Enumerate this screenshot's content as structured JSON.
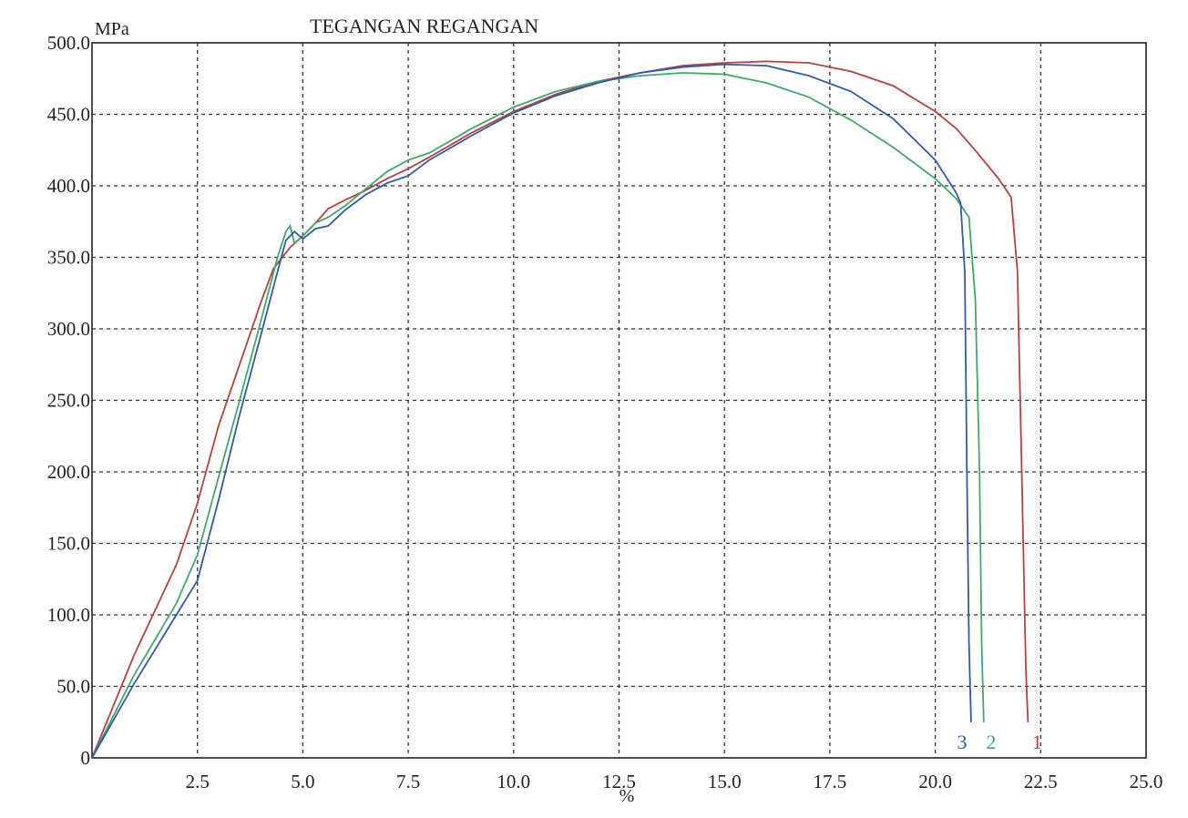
{
  "chart_data": {
    "type": "line",
    "title": "TEGANGAN REGANGAN",
    "ylabel": "MPa",
    "xlabel": "%",
    "xlim": [
      0,
      25
    ],
    "ylim": [
      0,
      500
    ],
    "grid": true,
    "x_ticks": [
      "2.5",
      "5.0",
      "7.5",
      "10.0",
      "12.5",
      "15.0",
      "17.5",
      "20.0",
      "22.5",
      "25.0"
    ],
    "y_ticks": [
      "0",
      "50.0",
      "100.0",
      "150.0",
      "200.0",
      "250.0",
      "300.0",
      "350.0",
      "400.0",
      "450.0",
      "500.0"
    ],
    "series": [
      {
        "name": "1",
        "color": "#b5413f",
        "points": [
          [
            0,
            0
          ],
          [
            1.0,
            72
          ],
          [
            2.0,
            135
          ],
          [
            2.5,
            178
          ],
          [
            3.0,
            232
          ],
          [
            3.5,
            275
          ],
          [
            4.0,
            318
          ],
          [
            4.3,
            342
          ],
          [
            4.7,
            357
          ],
          [
            5.0,
            365
          ],
          [
            5.3,
            374
          ],
          [
            5.6,
            384
          ],
          [
            6.0,
            390
          ],
          [
            6.5,
            397
          ],
          [
            7.0,
            405
          ],
          [
            7.5,
            412
          ],
          [
            8.0,
            420
          ],
          [
            9.0,
            437
          ],
          [
            10.0,
            452
          ],
          [
            11.0,
            464
          ],
          [
            12.0,
            473
          ],
          [
            13.0,
            479
          ],
          [
            14.0,
            484
          ],
          [
            15.0,
            486
          ],
          [
            16.0,
            487
          ],
          [
            17.0,
            486
          ],
          [
            18.0,
            480
          ],
          [
            19.0,
            470
          ],
          [
            20.0,
            452
          ],
          [
            20.5,
            440
          ],
          [
            21.0,
            423
          ],
          [
            21.5,
            405
          ],
          [
            21.8,
            392
          ],
          [
            21.95,
            340
          ],
          [
            22.05,
            200
          ],
          [
            22.15,
            60
          ],
          [
            22.2,
            25
          ]
        ]
      },
      {
        "name": "2",
        "color": "#3fa86a",
        "points": [
          [
            0,
            0
          ],
          [
            1.0,
            58
          ],
          [
            2.0,
            108
          ],
          [
            2.5,
            142
          ],
          [
            3.0,
            196
          ],
          [
            3.5,
            250
          ],
          [
            4.0,
            305
          ],
          [
            4.4,
            350
          ],
          [
            4.6,
            368
          ],
          [
            4.7,
            372
          ],
          [
            4.8,
            360
          ],
          [
            5.0,
            365
          ],
          [
            5.3,
            374
          ],
          [
            5.6,
            378
          ],
          [
            6.0,
            386
          ],
          [
            6.5,
            398
          ],
          [
            7.0,
            410
          ],
          [
            7.5,
            418
          ],
          [
            8.0,
            423
          ],
          [
            9.0,
            440
          ],
          [
            10.0,
            455
          ],
          [
            11.0,
            466
          ],
          [
            12.0,
            473
          ],
          [
            13.0,
            477
          ],
          [
            14.0,
            479
          ],
          [
            15.0,
            478
          ],
          [
            16.0,
            472
          ],
          [
            17.0,
            462
          ],
          [
            18.0,
            446
          ],
          [
            19.0,
            427
          ],
          [
            20.0,
            405
          ],
          [
            20.5,
            391
          ],
          [
            20.8,
            378
          ],
          [
            20.95,
            320
          ],
          [
            21.05,
            200
          ],
          [
            21.1,
            80
          ],
          [
            21.15,
            25
          ]
        ]
      },
      {
        "name": "3",
        "color": "#2e5aa8",
        "points": [
          [
            0,
            0
          ],
          [
            1.0,
            52
          ],
          [
            2.0,
            100
          ],
          [
            2.5,
            124
          ],
          [
            3.0,
            180
          ],
          [
            3.5,
            240
          ],
          [
            4.0,
            295
          ],
          [
            4.4,
            340
          ],
          [
            4.6,
            362
          ],
          [
            4.8,
            368
          ],
          [
            5.0,
            363
          ],
          [
            5.3,
            370
          ],
          [
            5.6,
            372
          ],
          [
            6.0,
            383
          ],
          [
            6.5,
            394
          ],
          [
            7.0,
            402
          ],
          [
            7.5,
            407
          ],
          [
            8.0,
            418
          ],
          [
            9.0,
            435
          ],
          [
            10.0,
            451
          ],
          [
            11.0,
            463
          ],
          [
            12.0,
            472
          ],
          [
            13.0,
            479
          ],
          [
            14.0,
            483
          ],
          [
            15.0,
            485
          ],
          [
            16.0,
            484
          ],
          [
            17.0,
            477
          ],
          [
            18.0,
            466
          ],
          [
            19.0,
            447
          ],
          [
            20.0,
            418
          ],
          [
            20.5,
            395
          ],
          [
            20.6,
            388
          ],
          [
            20.7,
            340
          ],
          [
            20.75,
            200
          ],
          [
            20.8,
            80
          ],
          [
            20.85,
            25
          ]
        ]
      }
    ]
  }
}
